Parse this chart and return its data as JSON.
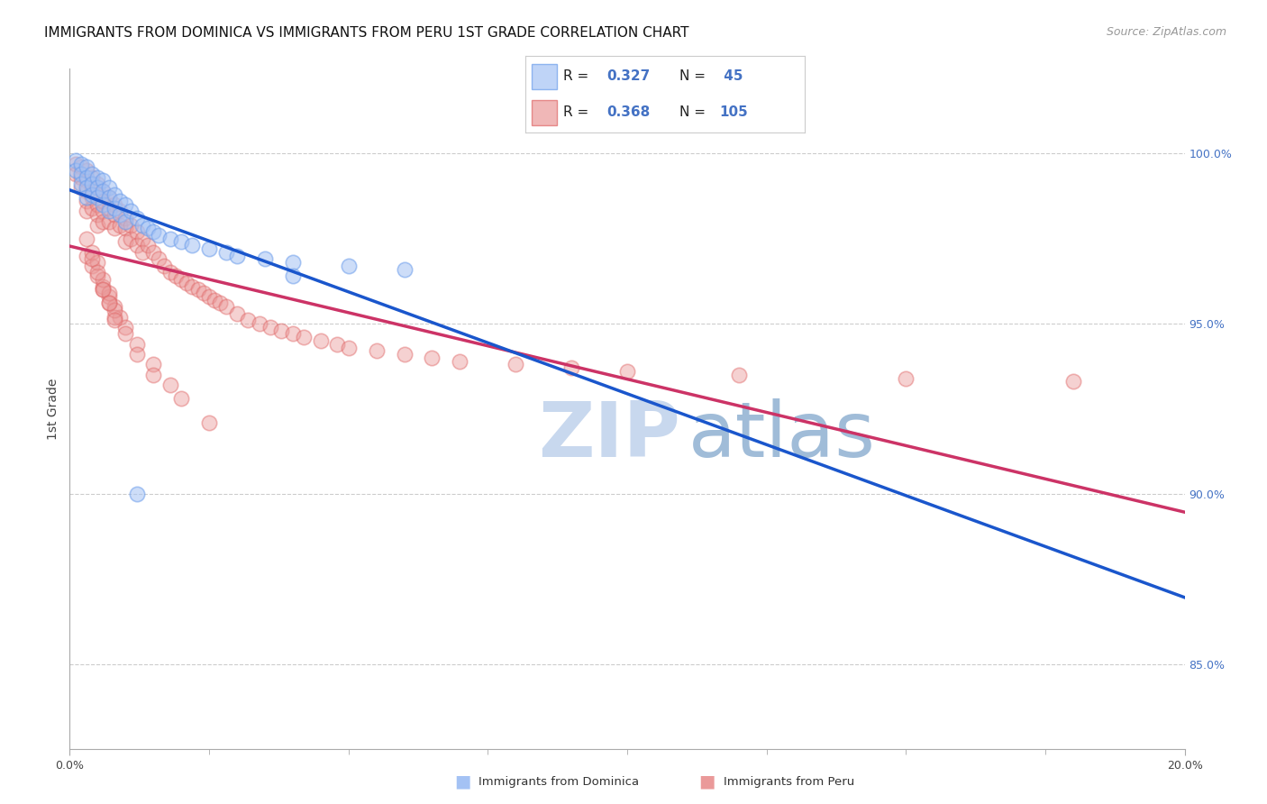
{
  "title": "IMMIGRANTS FROM DOMINICA VS IMMIGRANTS FROM PERU 1ST GRADE CORRELATION CHART",
  "source_text": "Source: ZipAtlas.com",
  "ylabel": "1st Grade",
  "dominica_R": 0.327,
  "dominica_N": 45,
  "peru_R": 0.368,
  "peru_N": 105,
  "dominica_color": "#a4c2f4",
  "dominica_edge_color": "#6d9eeb",
  "peru_color": "#ea9999",
  "peru_edge_color": "#e06666",
  "dominica_line_color": "#1a56cc",
  "peru_line_color": "#cc3366",
  "right_tick_color": "#4472c4",
  "watermark_zip_color": "#c8d8e8",
  "watermark_atlas_color": "#7bafd4",
  "background_color": "#ffffff",
  "xlim": [
    0.0,
    0.2
  ],
  "ylim": [
    0.825,
    1.025
  ],
  "y_ticks": [
    0.85,
    0.9,
    0.95,
    1.0
  ],
  "y_tick_labels": [
    "85.0%",
    "90.0%",
    "95.0%",
    "100.0%"
  ],
  "x_ticks": [
    0.0,
    0.2
  ],
  "x_tick_labels": [
    "0.0%",
    "20.0%"
  ],
  "legend_label_dom": "Immigrants from Dominica",
  "legend_label_peru": "Immigrants from Peru",
  "title_fontsize": 11,
  "source_fontsize": 9,
  "dominica_x": [
    0.001,
    0.001,
    0.002,
    0.002,
    0.002,
    0.003,
    0.003,
    0.003,
    0.003,
    0.004,
    0.004,
    0.004,
    0.005,
    0.005,
    0.005,
    0.006,
    0.006,
    0.006,
    0.007,
    0.007,
    0.007,
    0.008,
    0.008,
    0.009,
    0.009,
    0.01,
    0.01,
    0.011,
    0.012,
    0.013,
    0.014,
    0.015,
    0.016,
    0.018,
    0.02,
    0.022,
    0.025,
    0.028,
    0.03,
    0.035,
    0.04,
    0.05,
    0.06,
    0.04,
    0.012
  ],
  "dominica_y": [
    0.998,
    0.995,
    0.997,
    0.994,
    0.991,
    0.996,
    0.993,
    0.99,
    0.987,
    0.994,
    0.991,
    0.988,
    0.993,
    0.99,
    0.987,
    0.992,
    0.989,
    0.985,
    0.99,
    0.987,
    0.983,
    0.988,
    0.984,
    0.986,
    0.982,
    0.985,
    0.98,
    0.983,
    0.981,
    0.979,
    0.978,
    0.977,
    0.976,
    0.975,
    0.974,
    0.973,
    0.972,
    0.971,
    0.97,
    0.969,
    0.968,
    0.967,
    0.966,
    0.964,
    0.9
  ],
  "peru_x": [
    0.001,
    0.001,
    0.002,
    0.002,
    0.002,
    0.003,
    0.003,
    0.003,
    0.003,
    0.003,
    0.004,
    0.004,
    0.004,
    0.004,
    0.005,
    0.005,
    0.005,
    0.005,
    0.005,
    0.006,
    0.006,
    0.006,
    0.006,
    0.007,
    0.007,
    0.007,
    0.008,
    0.008,
    0.008,
    0.009,
    0.009,
    0.01,
    0.01,
    0.01,
    0.011,
    0.011,
    0.012,
    0.012,
    0.013,
    0.013,
    0.014,
    0.015,
    0.016,
    0.017,
    0.018,
    0.019,
    0.02,
    0.021,
    0.022,
    0.023,
    0.024,
    0.025,
    0.026,
    0.027,
    0.028,
    0.03,
    0.032,
    0.034,
    0.036,
    0.038,
    0.04,
    0.042,
    0.045,
    0.048,
    0.05,
    0.055,
    0.06,
    0.065,
    0.07,
    0.08,
    0.09,
    0.1,
    0.12,
    0.15,
    0.18,
    0.003,
    0.004,
    0.005,
    0.006,
    0.007,
    0.008,
    0.009,
    0.01,
    0.012,
    0.015,
    0.018,
    0.02,
    0.025,
    0.006,
    0.007,
    0.008,
    0.01,
    0.012,
    0.015,
    0.003,
    0.004,
    0.005,
    0.006,
    0.007,
    0.008,
    0.004,
    0.005,
    0.006,
    0.007,
    0.008
  ],
  "peru_y": [
    0.997,
    0.994,
    0.996,
    0.993,
    0.99,
    0.995,
    0.992,
    0.989,
    0.986,
    0.983,
    0.993,
    0.99,
    0.987,
    0.984,
    0.991,
    0.988,
    0.985,
    0.982,
    0.979,
    0.989,
    0.986,
    0.983,
    0.98,
    0.987,
    0.984,
    0.98,
    0.985,
    0.982,
    0.978,
    0.983,
    0.979,
    0.981,
    0.978,
    0.974,
    0.979,
    0.975,
    0.977,
    0.973,
    0.975,
    0.971,
    0.973,
    0.971,
    0.969,
    0.967,
    0.965,
    0.964,
    0.963,
    0.962,
    0.961,
    0.96,
    0.959,
    0.958,
    0.957,
    0.956,
    0.955,
    0.953,
    0.951,
    0.95,
    0.949,
    0.948,
    0.947,
    0.946,
    0.945,
    0.944,
    0.943,
    0.942,
    0.941,
    0.94,
    0.939,
    0.938,
    0.937,
    0.936,
    0.935,
    0.934,
    0.933,
    0.97,
    0.967,
    0.964,
    0.961,
    0.958,
    0.955,
    0.952,
    0.949,
    0.944,
    0.938,
    0.932,
    0.928,
    0.921,
    0.96,
    0.956,
    0.952,
    0.947,
    0.941,
    0.935,
    0.975,
    0.971,
    0.968,
    0.963,
    0.959,
    0.954,
    0.969,
    0.965,
    0.96,
    0.956,
    0.951
  ]
}
